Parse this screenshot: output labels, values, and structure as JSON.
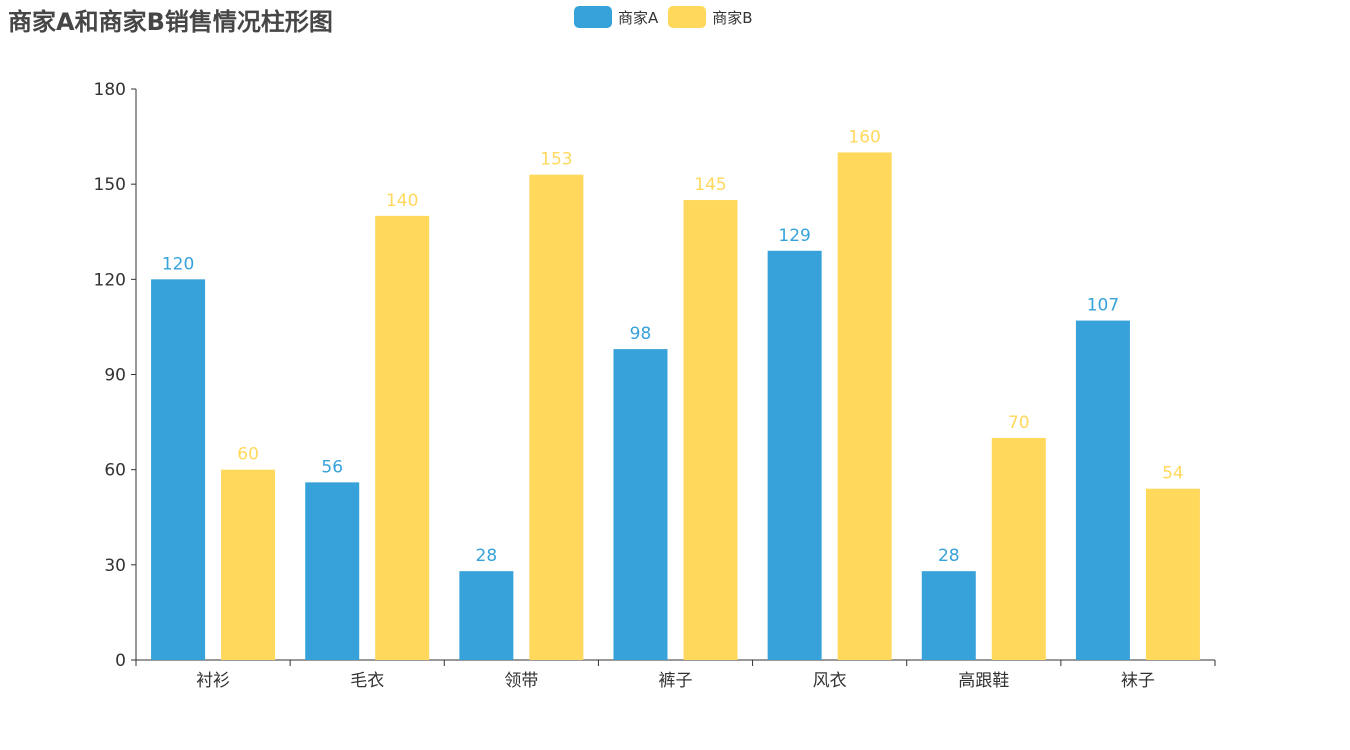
{
  "title": "商家A和商家B销售情况柱形图",
  "colors": {
    "series_a": "#37a2da",
    "series_b": "#ffd85c",
    "axis": "#333333"
  },
  "legend": [
    {
      "label": "商家A",
      "color": "#37a2da"
    },
    {
      "label": "商家B",
      "color": "#ffd85c"
    }
  ],
  "chart_data": {
    "type": "bar",
    "title": "商家A和商家B销售情况柱形图",
    "categories": [
      "衬衫",
      "毛衣",
      "领带",
      "裤子",
      "风衣",
      "高跟鞋",
      "袜子"
    ],
    "series": [
      {
        "name": "商家A",
        "values": [
          120,
          56,
          28,
          98,
          129,
          28,
          107
        ]
      },
      {
        "name": "商家B",
        "values": [
          60,
          140,
          153,
          145,
          160,
          70,
          54
        ]
      }
    ],
    "ylim": [
      0,
      180
    ],
    "yticks": [
      0,
      30,
      60,
      90,
      120,
      150,
      180
    ],
    "xlabel": "",
    "ylabel": "",
    "grid": false,
    "legend_position": "top-center",
    "data_labels": true
  }
}
